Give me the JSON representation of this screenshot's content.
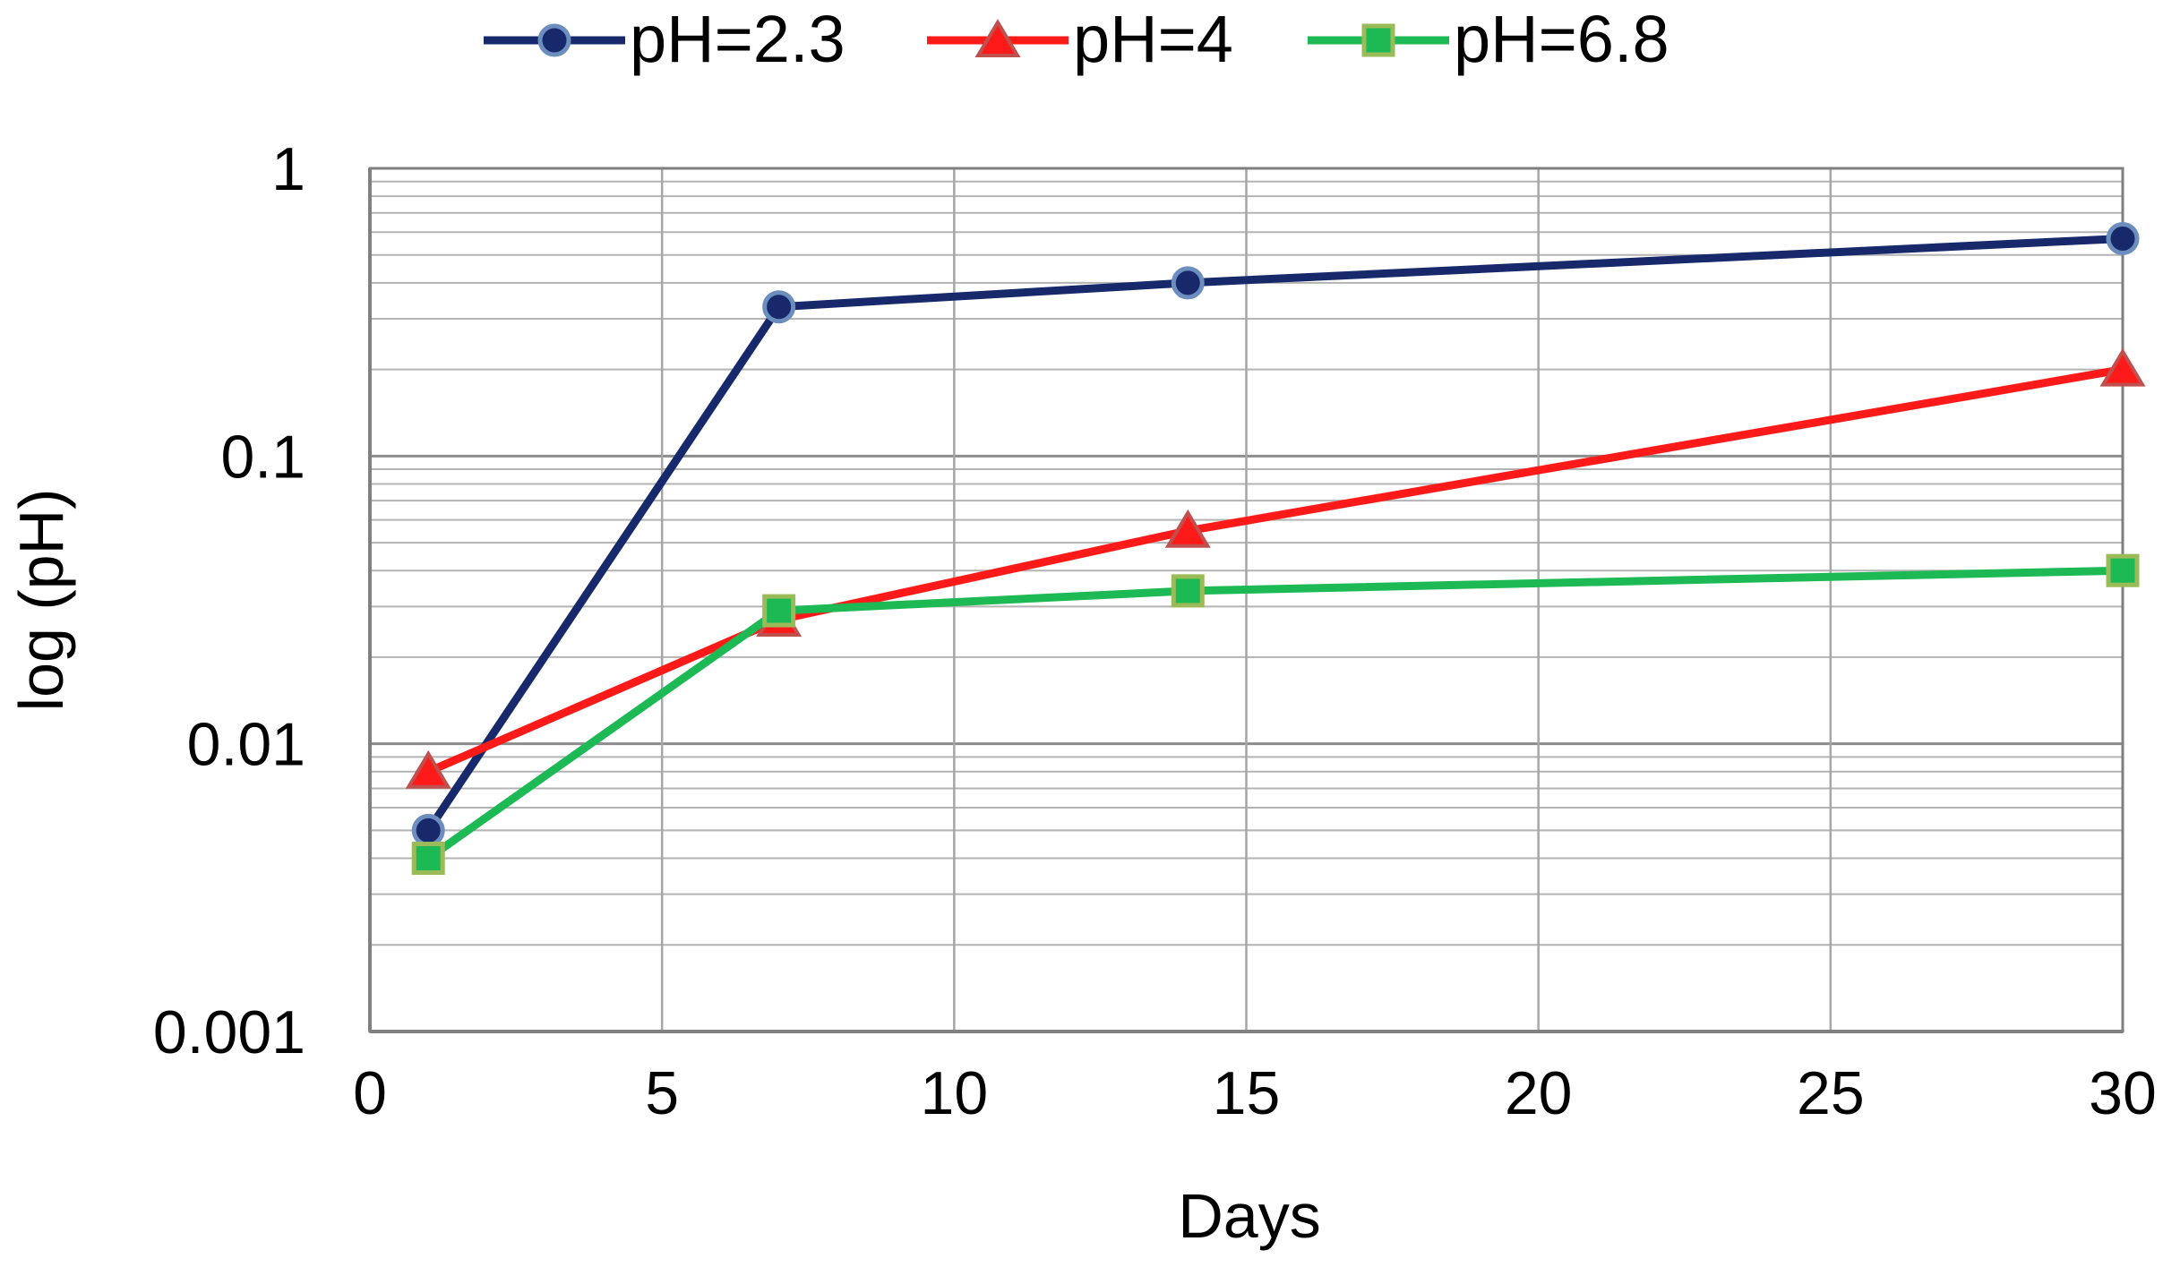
{
  "chart_data": {
    "type": "line",
    "title": "",
    "xlabel": "Days",
    "ylabel": "log (pH)",
    "xlim": [
      0,
      30
    ],
    "ylim": [
      0.001,
      1
    ],
    "yscale": "log",
    "grid": true,
    "legend_position": "top-center",
    "x_ticks": [
      0,
      5,
      10,
      15,
      20,
      25,
      30
    ],
    "x_tick_labels": [
      "0",
      "5",
      "10",
      "15",
      "20",
      "25",
      "30"
    ],
    "y_ticks": [
      0.001,
      0.01,
      0.1,
      1
    ],
    "y_tick_labels": [
      "0.001",
      "0.01",
      "0.1",
      "1"
    ],
    "series": [
      {
        "name": "pH=2.3",
        "color": "#17296b",
        "marker": "circle",
        "x": [
          1,
          7,
          14,
          30
        ],
        "values": [
          0.005,
          0.33,
          0.4,
          0.57
        ]
      },
      {
        "name": "pH=4",
        "color": "#ff1a1a",
        "marker": "triangle",
        "x": [
          1,
          7,
          14,
          30
        ],
        "values": [
          0.008,
          0.027,
          0.055,
          0.2
        ]
      },
      {
        "name": "pH=6.8",
        "color": "#1db954",
        "marker": "square",
        "x": [
          1,
          7,
          14,
          30
        ],
        "values": [
          0.004,
          0.029,
          0.034,
          0.04
        ]
      }
    ]
  }
}
